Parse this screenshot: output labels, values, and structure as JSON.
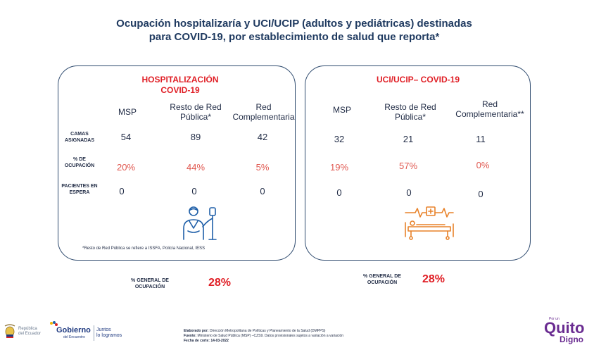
{
  "title": {
    "line1": "Ocupación hospitalizaría y UCI/UCIP (adultos y pediátricas) destinadas",
    "line2": "para COVID-19, por establecimiento de salud que reporta*"
  },
  "hospitalizacion": {
    "title_line1": "HOSPITALIZACIÓN",
    "title_line2": "COVID-19",
    "col_msp": "MSP",
    "col_resto_l1": "Resto de Red",
    "col_resto_l2": "Pública*",
    "col_comp_l1": "Red",
    "col_comp_l2": "Complementaria",
    "row_camas_l1": "CAMAS",
    "row_camas_l2": "ASIGNADAS",
    "row_ocup_l1": "% DE",
    "row_ocup_l2": "OCUPACIÓN",
    "row_esp_l1": "PACIENTES EN",
    "row_esp_l2": "ESPERA",
    "camas": [
      "54",
      "89",
      "42"
    ],
    "ocupacion": [
      "20%",
      "44%",
      "5%"
    ],
    "espera": [
      "0",
      "0",
      "0"
    ],
    "note": "*Resto de Red Pública se refiere a ISSFA, Policía Nacional, IESS",
    "icon": "hospital-patient-iv-icon"
  },
  "uci": {
    "title": "UCI/UCIP– COVID-19",
    "col_msp": "MSP",
    "col_resto_l1": "Resto de Red",
    "col_resto_l2": "Pública*",
    "col_comp_l1": "Red",
    "col_comp_l2": "Complementaria**",
    "camas": [
      "32",
      "21",
      "11"
    ],
    "ocupacion": [
      "19%",
      "57%",
      "0%"
    ],
    "espera": [
      "0",
      "0",
      "0"
    ],
    "icon": "icu-bed-monitor-icon"
  },
  "general_left": {
    "label_l1": "% GENERAL DE",
    "label_l2": "OCUPACIÓN",
    "value": "28%"
  },
  "general_right": {
    "label_l1": "% GENERAL DE",
    "label_l2": "OCUPACIÓN",
    "value": "28%"
  },
  "footer": {
    "ecuador_l1": "República",
    "ecuador_l2": "del Ecuador",
    "gob_name": "Gobierno",
    "gob_sub": "del Encuentro",
    "gob_tag_l1": "Juntos",
    "gob_tag_l2": "lo logramos",
    "elaborado_label": "Elaborado por:",
    "elaborado": "Dirección Metropolitana de Políticas y Planeamiento de la Salud (DMPPS)",
    "fuente_label": "Fuente:",
    "fuente": "Ministerio de Salud Pública (MSP) –CZS9. Datos provisionales sujetos a variación a variación",
    "fecha_label": "Fecha de corte:",
    "fecha": "14-03-2022",
    "quito_pre": "Por un",
    "quito": "Quito",
    "digno": "Digno"
  },
  "colors": {
    "red": "#e01f26",
    "pct": "#e0574f",
    "navy": "#1f3a60",
    "orange": "#e8822a",
    "blue": "#1f5fa8"
  }
}
